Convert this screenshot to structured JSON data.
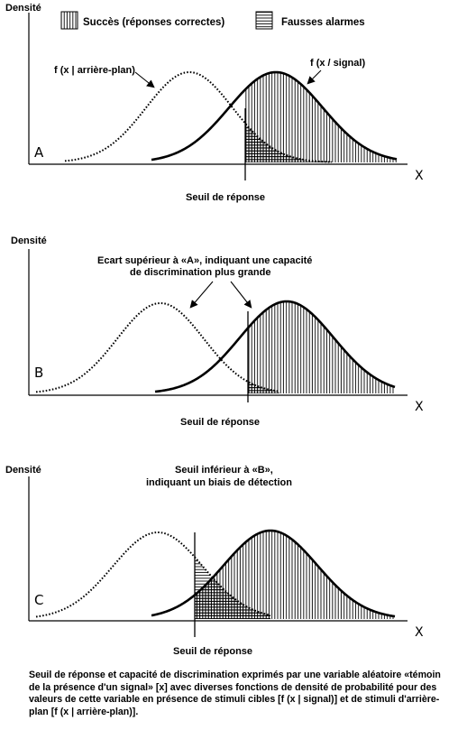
{
  "legend": {
    "hits": "Succès (réponses correctes)",
    "false_alarms": "Fausses alarmes"
  },
  "panels": [
    {
      "letter": "A",
      "y_label": "Densité",
      "threshold_label": "Seuil de réponse",
      "noise_label": "f (x | arrière-plan)",
      "signal_label": "f (x / signal)",
      "x_label": "X",
      "annotation": []
    },
    {
      "letter": "B",
      "y_label": "Densité",
      "threshold_label": "Seuil de réponse",
      "x_label": "X",
      "annotation": [
        "Ecart supérieur à «A»,  indiquant une capacité",
        "de discrimination plus grande"
      ]
    },
    {
      "letter": "C",
      "y_label": "Densité",
      "threshold_label": "Seuil de réponse",
      "x_label": "X",
      "annotation": [
        "Seuil inférieur à «B»,",
        "indiquant un biais de détection"
      ]
    }
  ],
  "caption": "Seuil de réponse et capacité de discrimination exprimés par une variable aléatoire «témoin de la présence d'un signal» [x] avec diverses fonctions de densité de probabilité pour des valeurs de cette variable en présence de stimuli cibles [f (x | signal)] et de stimuli d'arrière-plan [f (x | arrière-plan)]."
}
